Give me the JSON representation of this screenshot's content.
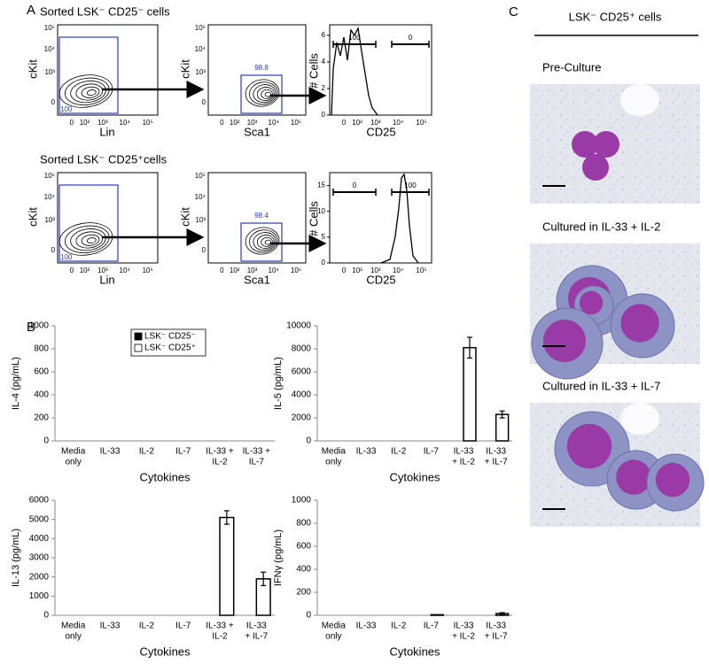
{
  "panel_labels": [
    "A",
    "B",
    "C"
  ],
  "flow": {
    "rows": [
      {
        "title": "Sorted LSK⁻ CD25⁻ cells",
        "gate1": "100",
        "gate2": "98.8",
        "hist_gates": [
          "100",
          "0"
        ],
        "hist_ylim": [
          0,
          6.8
        ],
        "hist_yticks": [
          0,
          2,
          4,
          6
        ]
      },
      {
        "title": "Sorted LSK⁻ CD25⁺cells",
        "gate1": "100",
        "gate2": "98.4",
        "hist_gates": [
          "0",
          "100"
        ],
        "hist_ylim": [
          0,
          17.5
        ],
        "hist_yticks": [
          0,
          5,
          10,
          15
        ]
      }
    ],
    "axis_labels": {
      "ckit": "cKit",
      "lin": "Lin",
      "sca1": "Sca1",
      "cells": "# Cells",
      "cd25": "CD25"
    },
    "log_ticks": [
      "0",
      "10²",
      "10³",
      "10⁴",
      "10⁵"
    ]
  },
  "panel_c": {
    "header": "LSK⁻ CD25⁺ cells",
    "captions": [
      "Pre-Culture",
      "Cultured in IL-33 + IL-2",
      "Cultured in IL-33 + IL-7"
    ]
  },
  "chart_data": [
    {
      "type": "bar",
      "ylabel": "IL-4 (pg/mL)",
      "xlabel": "Cytokines",
      "categories": [
        [
          "Media",
          "only"
        ],
        [
          "IL-33"
        ],
        [
          "IL-2"
        ],
        [
          "IL-7"
        ],
        [
          "IL-33 +",
          "IL-2"
        ],
        [
          "IL-33 +",
          "IL-7"
        ]
      ],
      "ylim": [
        0,
        1000
      ],
      "yticks": [
        0,
        200,
        400,
        600,
        800,
        1000
      ],
      "legend": "top",
      "series": [
        {
          "name": "LSK⁻ CD25⁻",
          "color": "#000000",
          "values": [
            0,
            0,
            0,
            0,
            0,
            0
          ]
        },
        {
          "name": "LSK⁻ CD25⁺",
          "color": "#ffffff",
          "values": [
            0,
            0,
            0,
            0,
            0,
            0
          ]
        }
      ]
    },
    {
      "type": "bar",
      "ylabel": "IL-5 (pg/mL)",
      "xlabel": "Cytokines",
      "categories": [
        [
          "Media",
          "only"
        ],
        [
          "IL-33"
        ],
        [
          "IL-2"
        ],
        [
          "IL-7"
        ],
        [
          "IL-33",
          "+ IL-2"
        ],
        [
          "IL-33",
          "+ IL-7"
        ]
      ],
      "ylim": [
        0,
        10000
      ],
      "yticks": [
        0,
        2000,
        4000,
        6000,
        8000,
        10000
      ],
      "series": [
        {
          "name": "LSK⁻ CD25⁻",
          "color": "#000000",
          "values": [
            0,
            0,
            0,
            0,
            0,
            0
          ]
        },
        {
          "name": "LSK⁻ CD25⁺",
          "color": "#ffffff",
          "values": [
            0,
            0,
            0,
            0,
            8100,
            2300
          ],
          "errors": [
            null,
            null,
            null,
            null,
            900,
            300
          ]
        }
      ]
    },
    {
      "type": "bar",
      "ylabel": "IL-13 (pg/mL)",
      "xlabel": "Cytokines",
      "categories": [
        [
          "Media",
          "only"
        ],
        [
          "IL-33"
        ],
        [
          "IL-2"
        ],
        [
          "IL-7"
        ],
        [
          "IL-33 +",
          "IL-2"
        ],
        [
          "IL-33",
          "+ IL-7"
        ]
      ],
      "ylim": [
        0,
        6000
      ],
      "yticks": [
        0,
        1000,
        2000,
        3000,
        4000,
        5000,
        6000
      ],
      "series": [
        {
          "name": "LSK⁻ CD25⁻",
          "color": "#000000",
          "values": [
            0,
            0,
            0,
            0,
            0,
            0
          ]
        },
        {
          "name": "LSK⁻ CD25⁺",
          "color": "#ffffff",
          "values": [
            0,
            0,
            0,
            0,
            5100,
            1900
          ],
          "errors": [
            null,
            null,
            null,
            null,
            350,
            350
          ]
        }
      ]
    },
    {
      "type": "bar",
      "ylabel": "IFNγ (pg/mL)",
      "xlabel": "Cytokines",
      "categories": [
        [
          "Media",
          "only"
        ],
        [
          "IL-33"
        ],
        [
          "IL-2"
        ],
        [
          "IL-7"
        ],
        [
          "IL-33",
          "+ IL-2"
        ],
        [
          "IL-33",
          "+ IL-7"
        ]
      ],
      "ylim": [
        0,
        1000
      ],
      "yticks": [
        0,
        200,
        400,
        600,
        800,
        1000
      ],
      "series": [
        {
          "name": "LSK⁻ CD25⁻",
          "color": "#000000",
          "values": [
            0,
            0,
            0,
            0,
            0,
            0
          ]
        },
        {
          "name": "LSK⁻ CD25⁺",
          "color": "#ffffff",
          "values": [
            0,
            0,
            0,
            5,
            0,
            15
          ],
          "errors": [
            null,
            null,
            null,
            null,
            null,
            8
          ]
        }
      ]
    }
  ]
}
